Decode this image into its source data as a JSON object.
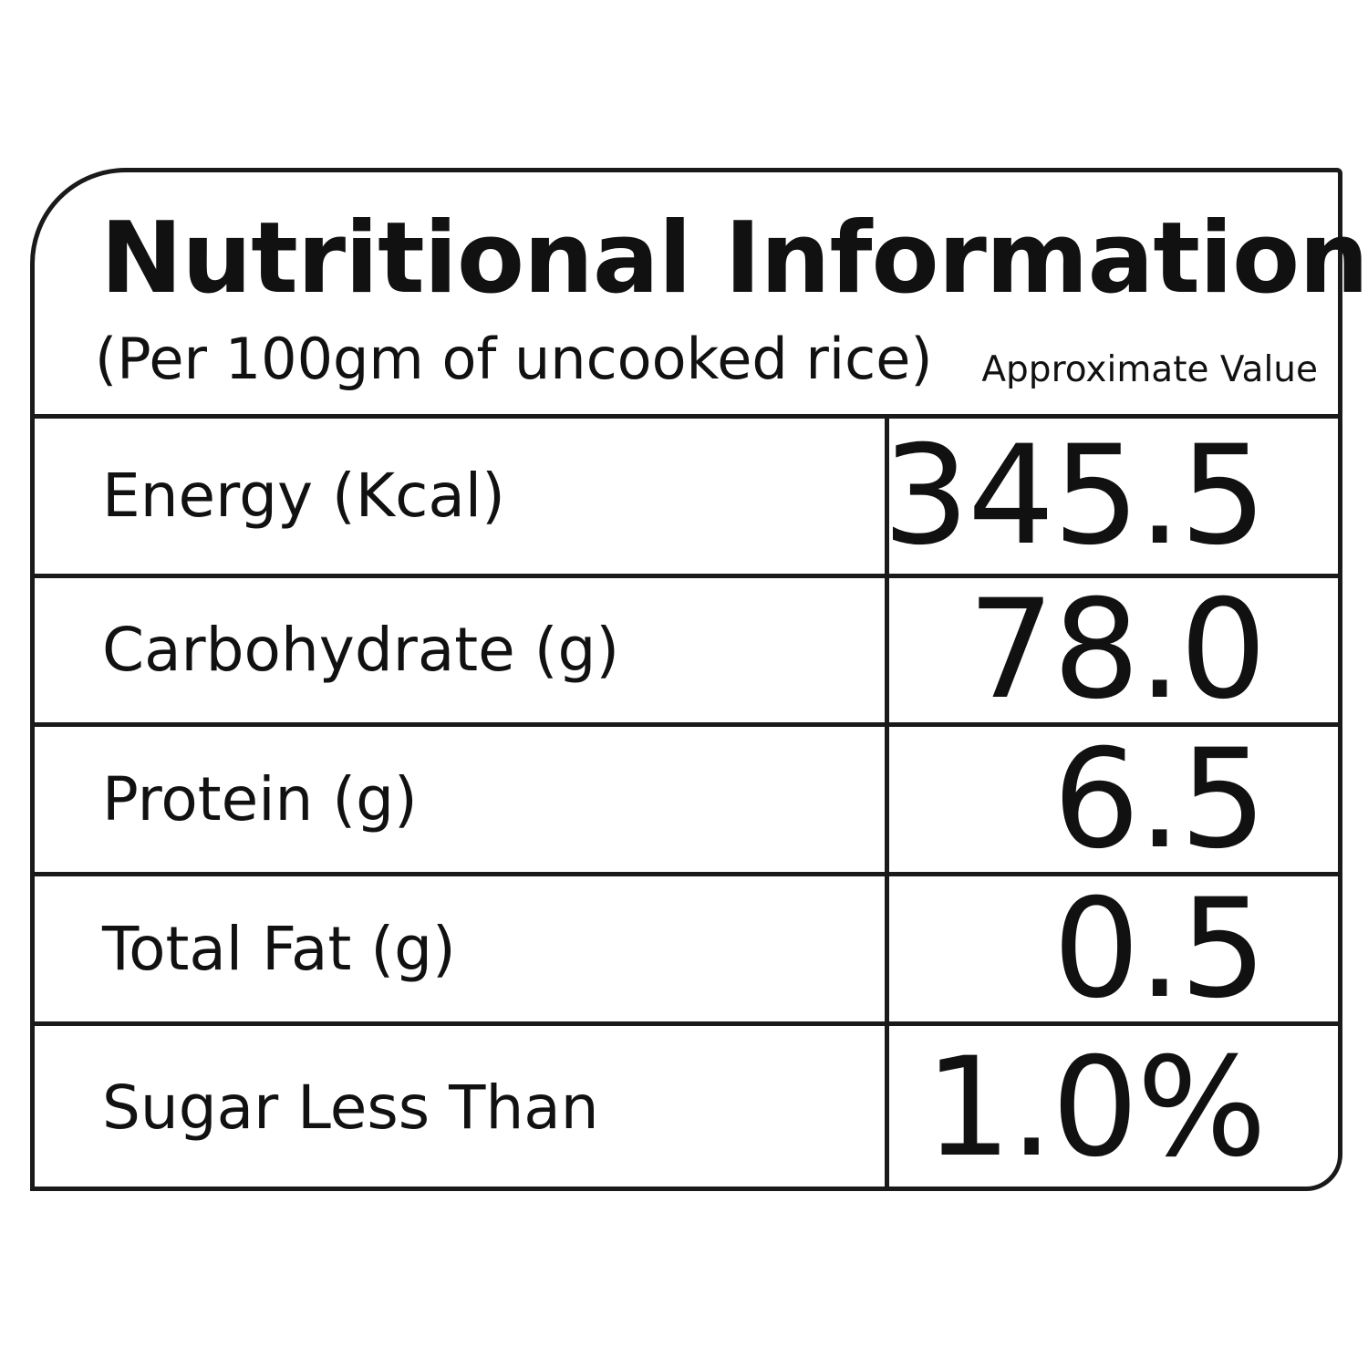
{
  "label": {
    "title": "Nutritional Information",
    "subtitle": "(Per 100gm of uncooked rice)",
    "value_header": "Approximate Value"
  },
  "rows": [
    {
      "name": "Energy (Kcal)",
      "value": "345.5"
    },
    {
      "name": "Carbohydrate (g)",
      "value": "78.0"
    },
    {
      "name": "Protein (g)",
      "value": "6.5"
    },
    {
      "name": "Total Fat (g)",
      "value": "0.5"
    },
    {
      "name": "Sugar Less Than",
      "value": "1.0%"
    }
  ]
}
